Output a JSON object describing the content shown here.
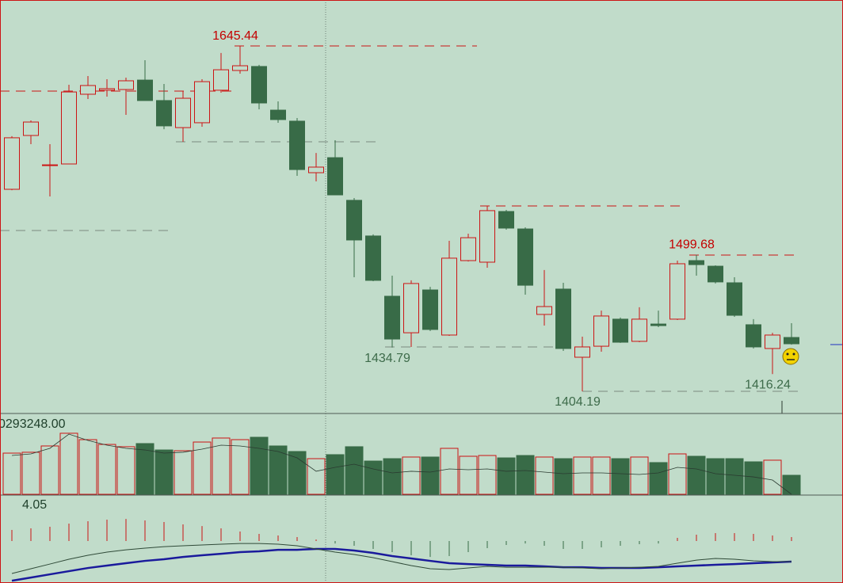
{
  "chart_data": [
    {
      "type": "candlestick",
      "open": [
        1545.3,
        1582.9,
        1561.9,
        1563.0,
        1611.7,
        1614.5,
        1615.0,
        1621.6,
        1607.3,
        1588.4,
        1591.8,
        1614.5,
        1628.3,
        1631.1,
        1600.6,
        1592.9,
        1556.9,
        1567.4,
        1537.6,
        1512.7,
        1470.6,
        1445.1,
        1475.0,
        1443.5,
        1495.5,
        1494.4,
        1529.8,
        1517.6,
        1457.9,
        1475.6,
        1428.0,
        1435.7,
        1454.6,
        1439.1,
        1451.2,
        1454.6,
        1495.5,
        1491.6,
        1480.0,
        1450.7,
        1434.1,
        1441.8
      ],
      "high": [
        1582.4,
        1593.4,
        1576.8,
        1618.3,
        1624.4,
        1622.2,
        1623.3,
        1635.5,
        1618.9,
        1613.9,
        1622.2,
        1640.5,
        1645.44,
        1632.2,
        1606.7,
        1595.1,
        1570.7,
        1579.6,
        1539.2,
        1513.8,
        1485.0,
        1481.7,
        1477.2,
        1509.3,
        1514.3,
        1533.7,
        1530.9,
        1518.7,
        1488.9,
        1480.0,
        1442.4,
        1460.6,
        1455.7,
        1462.9,
        1460.6,
        1495.5,
        1499.68,
        1492.2,
        1483.9,
        1454.6,
        1445.1,
        1451.8
      ],
      "low": [
        1544.7,
        1576.8,
        1540.3,
        1563.0,
        1608.4,
        1610.0,
        1597.3,
        1607.3,
        1587.3,
        1578.5,
        1589.0,
        1612.8,
        1626.1,
        1601.2,
        1591.8,
        1554.7,
        1550.8,
        1541.4,
        1483.9,
        1481.1,
        1434.79,
        1435.2,
        1446.3,
        1442.9,
        1494.9,
        1490.5,
        1517.1,
        1471.7,
        1450.1,
        1432.4,
        1404.19,
        1431.9,
        1438.0,
        1438.5,
        1449.0,
        1454.0,
        1485.0,
        1479.5,
        1456.2,
        1434.1,
        1416.24,
        1436.8
      ],
      "close": [
        1581.3,
        1592.3,
        1562.4,
        1613.3,
        1617.8,
        1615.6,
        1621.1,
        1607.3,
        1589.6,
        1608.9,
        1620.5,
        1628.8,
        1631.6,
        1605.6,
        1594.0,
        1559.1,
        1560.8,
        1541.4,
        1509.9,
        1481.7,
        1440.7,
        1479.5,
        1447.4,
        1497.2,
        1511.5,
        1530.4,
        1518.2,
        1478.3,
        1463.4,
        1434.1,
        1435.2,
        1456.8,
        1438.5,
        1454.6,
        1450.1,
        1493.3,
        1492.7,
        1480.6,
        1457.3,
        1435.2,
        1443.5,
        1437.4
      ],
      "ylim": [
        1388.71,
        1677.53
      ],
      "up_color": "#cc1414",
      "down_color": "#386b47",
      "high_labels": [
        12,
        36
      ],
      "low_labels": [
        20,
        30,
        40
      ],
      "high_label_color": "#c40000",
      "low_label_color": "#3d6b4a"
    },
    {
      "type": "volume",
      "label": "0293248.00",
      "values": [
        5350000,
        5460000,
        6280000,
        7930000,
        7100000,
        6480000,
        6180000,
        6590000,
        5760000,
        5660000,
        6790000,
        7310000,
        7100000,
        7410000,
        6280000,
        5560000,
        4630000,
        5150000,
        6180000,
        4320000,
        4630000,
        4840000,
        4840000,
        5970000,
        4940000,
        5040000,
        4730000,
        5040000,
        4840000,
        4630000,
        4840000,
        4840000,
        4630000,
        4840000,
        4120000,
        5250000,
        4940000,
        4630000,
        4630000,
        4220000,
        4430000,
        2470000
      ],
      "ma": [
        5040000,
        5250000,
        5970000,
        7820000,
        7000000,
        6380000,
        5970000,
        5760000,
        5350000,
        5460000,
        5870000,
        6380000,
        6280000,
        5970000,
        5560000,
        4730000,
        2990000,
        3500000,
        3910000,
        3290000,
        2780000,
        2990000,
        2880000,
        3290000,
        3190000,
        3290000,
        2990000,
        3090000,
        2880000,
        2680000,
        2780000,
        2780000,
        2680000,
        2570000,
        2780000,
        3500000,
        3290000,
        2680000,
        2470000,
        2260000,
        1850000,
        0
      ],
      "ma_color": "#2a3a30",
      "ylim": [
        0,
        10293248
      ]
    },
    {
      "type": "oscillator",
      "values": [
        1.01,
        1.16,
        1.3,
        1.59,
        1.81,
        1.95,
        2.02,
        1.88,
        1.74,
        1.52,
        1.37,
        1.16,
        0.87,
        0.65,
        0.51,
        0.36,
        0.14,
        -0.22,
        -0.43,
        -0.72,
        -1.01,
        -1.3,
        -1.45,
        -1.37,
        -1.01,
        -0.65,
        -0.36,
        -0.22,
        -0.43,
        -0.72,
        -0.72,
        -0.58,
        -0.43,
        -0.29,
        -0.22,
        0.29,
        0.58,
        0.72,
        0.72,
        0.65,
        0.51,
        0.36
      ],
      "up_color": "#cc1414",
      "down_color": "#386b47",
      "lines": [
        {
          "color": "#1a1a9c",
          "values": [
            -3.62,
            -3.33,
            -3.04,
            -2.75,
            -2.46,
            -2.24,
            -2.02,
            -1.81,
            -1.66,
            -1.45,
            -1.3,
            -1.16,
            -1.01,
            -0.94,
            -0.8,
            -0.8,
            -0.72,
            -0.72,
            -0.87,
            -1.08,
            -1.37,
            -1.59,
            -1.81,
            -2.02,
            -2.1,
            -2.17,
            -2.24,
            -2.24,
            -2.31,
            -2.39,
            -2.39,
            -2.46,
            -2.46,
            -2.46,
            -2.39,
            -2.31,
            -2.24,
            -2.17,
            -2.1,
            -2.02,
            -1.95,
            -1.88
          ]
        },
        {
          "color": "#2f4a38",
          "values": [
            -2.96,
            -2.53,
            -2.1,
            -1.66,
            -1.3,
            -1.01,
            -0.8,
            -0.65,
            -0.51,
            -0.43,
            -0.36,
            -0.29,
            -0.22,
            -0.22,
            -0.29,
            -0.43,
            -0.72,
            -1.01,
            -1.23,
            -1.52,
            -1.88,
            -2.24,
            -2.53,
            -2.6,
            -2.46,
            -2.31,
            -2.39,
            -2.39,
            -2.39,
            -2.39,
            -2.46,
            -2.53,
            -2.46,
            -2.39,
            -2.31,
            -2.02,
            -1.74,
            -1.59,
            -1.66,
            -1.81,
            -1.88,
            -1.88
          ]
        }
      ],
      "ylim": [
        -3.83,
        4.05
      ]
    }
  ]
}
